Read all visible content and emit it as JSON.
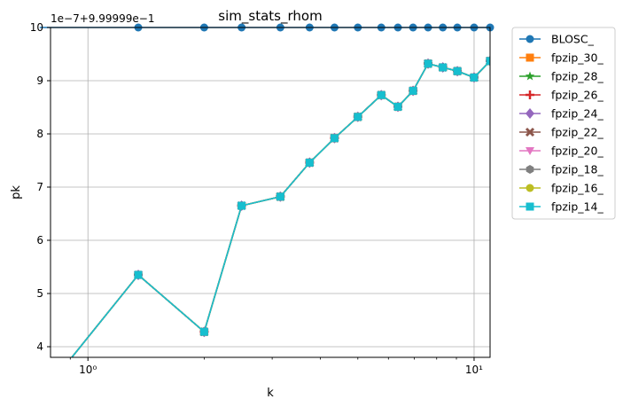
{
  "chart_data": {
    "type": "line",
    "title": "sim_stats_rhom",
    "xlabel": "k",
    "ylabel": "pk",
    "x_scale": "log",
    "offset_label": "1e−7+9.99999e−1",
    "xlim": [
      0.8,
      11
    ],
    "ylim": [
      3.8,
      10
    ],
    "x_ticks": [
      {
        "value": 1,
        "label": "10⁰"
      },
      {
        "value": 10,
        "label": "10¹"
      }
    ],
    "y_ticks": [
      4,
      5,
      6,
      7,
      8,
      9,
      10
    ],
    "grid": true,
    "legend_position": "outside-right",
    "x": [
      0.75,
      1.35,
      2,
      2.5,
      3.15,
      3.75,
      4.35,
      5,
      5.75,
      6.35,
      6.95,
      7.6,
      8.3,
      9.05,
      10,
      11
    ],
    "series": [
      {
        "name": "BLOSC_",
        "color": "#1f77b4",
        "marker": "circle",
        "values": [
          10,
          10,
          10,
          10,
          10,
          10,
          10,
          10,
          10,
          10,
          10,
          10,
          10,
          10,
          10,
          10
        ]
      },
      {
        "name": "fpzip_30_",
        "color": "#ff7f0e",
        "marker": "square",
        "values": [
          3.05,
          5.35,
          4.28,
          6.65,
          6.82,
          7.46,
          7.92,
          8.32,
          8.73,
          8.51,
          8.81,
          9.32,
          9.25,
          9.18,
          9.06,
          9.37
        ]
      },
      {
        "name": "fpzip_28_",
        "color": "#2ca02c",
        "marker": "star",
        "values": [
          3.05,
          5.35,
          4.28,
          6.65,
          6.82,
          7.46,
          7.92,
          8.32,
          8.73,
          8.51,
          8.81,
          9.32,
          9.25,
          9.18,
          9.06,
          9.37
        ]
      },
      {
        "name": "fpzip_26_",
        "color": "#d62728",
        "marker": "plus",
        "values": [
          3.05,
          5.35,
          4.28,
          6.65,
          6.82,
          7.46,
          7.92,
          8.32,
          8.73,
          8.51,
          8.81,
          9.32,
          9.25,
          9.18,
          9.06,
          9.37
        ]
      },
      {
        "name": "fpzip_24_",
        "color": "#9467bd",
        "marker": "diamond",
        "values": [
          3.05,
          5.35,
          4.28,
          6.65,
          6.82,
          7.46,
          7.92,
          8.32,
          8.73,
          8.51,
          8.81,
          9.32,
          9.25,
          9.18,
          9.06,
          9.37
        ]
      },
      {
        "name": "fpzip_22_",
        "color": "#8c564b",
        "marker": "x",
        "values": [
          3.05,
          5.35,
          4.28,
          6.65,
          6.82,
          7.46,
          7.92,
          8.32,
          8.73,
          8.51,
          8.81,
          9.32,
          9.25,
          9.18,
          9.06,
          9.37
        ]
      },
      {
        "name": "fpzip_20_",
        "color": "#e377c2",
        "marker": "triangle-down",
        "values": [
          3.05,
          5.35,
          4.28,
          6.65,
          6.82,
          7.46,
          7.92,
          8.32,
          8.73,
          8.51,
          8.81,
          9.32,
          9.25,
          9.18,
          9.06,
          9.37
        ]
      },
      {
        "name": "fpzip_18_",
        "color": "#7f7f7f",
        "marker": "hexagon",
        "values": [
          3.05,
          5.35,
          4.28,
          6.65,
          6.82,
          7.46,
          7.92,
          8.32,
          8.73,
          8.51,
          8.81,
          9.32,
          9.25,
          9.18,
          9.06,
          9.37
        ]
      },
      {
        "name": "fpzip_16_",
        "color": "#bcbd22",
        "marker": "circle",
        "values": [
          3.05,
          5.35,
          4.28,
          6.65,
          6.82,
          7.46,
          7.92,
          8.32,
          8.73,
          8.51,
          8.81,
          9.32,
          9.25,
          9.18,
          9.06,
          9.37
        ]
      },
      {
        "name": "fpzip_14_",
        "color": "#17becf",
        "marker": "square",
        "values": [
          3.05,
          5.35,
          4.28,
          6.65,
          6.82,
          7.46,
          7.92,
          8.32,
          8.73,
          8.51,
          8.81,
          9.32,
          9.25,
          9.18,
          9.06,
          9.37
        ]
      }
    ]
  }
}
